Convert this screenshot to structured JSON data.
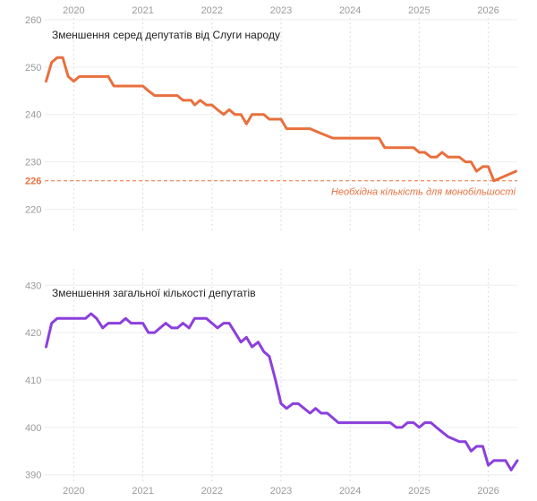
{
  "chart_data": [
    {
      "type": "line",
      "title": "Зменшення серед депутатів від Слуги народу",
      "color": "#e8703e",
      "xlim": [
        2019.58,
        2026.42
      ],
      "ylim": [
        218,
        260
      ],
      "x_ticks": [
        2020,
        2021,
        2022,
        2023,
        2024,
        2025,
        2026
      ],
      "x_tick_labels": [
        "2020",
        "2021",
        "2022",
        "2023",
        "2024",
        "2025",
        "2026"
      ],
      "y_ticks": [
        220,
        230,
        240,
        250,
        260
      ],
      "y_tick_labels": [
        "220",
        "230",
        "240",
        "250",
        "260"
      ],
      "x_axis_position": "top",
      "grid": true,
      "reference_line": {
        "value": 226,
        "label": "Необхідна кількість для монобільшості",
        "tick_label": "226",
        "color": "#e8703e"
      },
      "series": [
        {
          "x": [
            2019.6,
            2019.68,
            2019.76,
            2019.84,
            2019.92,
            2020.0,
            2020.08,
            2020.25,
            2020.5,
            2020.58,
            2020.66,
            2020.75,
            2021.0,
            2021.08,
            2021.17,
            2021.25,
            2021.5,
            2021.58,
            2021.7,
            2021.75,
            2021.83,
            2021.92,
            2022.0,
            2022.08,
            2022.17,
            2022.25,
            2022.33,
            2022.42,
            2022.5,
            2022.58,
            2022.67,
            2022.75,
            2022.83,
            2023.0,
            2023.08,
            2023.17,
            2023.42,
            2023.58,
            2023.75,
            2024.0,
            2024.25,
            2024.42,
            2024.5,
            2024.75,
            2024.92,
            2025.0,
            2025.08,
            2025.17,
            2025.25,
            2025.33,
            2025.42,
            2025.58,
            2025.67,
            2025.75,
            2025.83,
            2025.92,
            2026.0,
            2026.08,
            2026.4
          ],
          "values": [
            247,
            251,
            252,
            252,
            248,
            247,
            248,
            248,
            248,
            246,
            246,
            246,
            246,
            245,
            244,
            244,
            244,
            243,
            243,
            242,
            243,
            242,
            242,
            241,
            240,
            241,
            240,
            240,
            238,
            240,
            240,
            240,
            239,
            239,
            237,
            237,
            237,
            236,
            235,
            235,
            235,
            235,
            233,
            233,
            233,
            232,
            232,
            231,
            231,
            232,
            231,
            231,
            230,
            230,
            228,
            229,
            229,
            226,
            228
          ]
        }
      ]
    },
    {
      "type": "line",
      "title": "Зменшення загальної кількості депутатів",
      "color": "#8b3fdc",
      "xlim": [
        2019.58,
        2026.42
      ],
      "ylim": [
        389,
        431
      ],
      "x_ticks": [
        2020,
        2021,
        2022,
        2023,
        2024,
        2025,
        2026
      ],
      "x_tick_labels": [
        "2020",
        "2021",
        "2022",
        "2023",
        "2024",
        "2025",
        "2026"
      ],
      "y_ticks": [
        390,
        400,
        410,
        420,
        430
      ],
      "y_tick_labels": [
        "390",
        "400",
        "410",
        "420",
        "430"
      ],
      "x_axis_position": "bottom",
      "grid": true,
      "series": [
        {
          "x": [
            2019.6,
            2019.68,
            2019.76,
            2019.84,
            2020.0,
            2020.17,
            2020.25,
            2020.33,
            2020.42,
            2020.5,
            2020.58,
            2020.67,
            2020.75,
            2020.83,
            2021.0,
            2021.08,
            2021.17,
            2021.25,
            2021.33,
            2021.42,
            2021.5,
            2021.58,
            2021.67,
            2021.75,
            2021.92,
            2022.08,
            2022.17,
            2022.25,
            2022.42,
            2022.5,
            2022.58,
            2022.67,
            2022.75,
            2022.83,
            2022.92,
            2023.0,
            2023.08,
            2023.17,
            2023.25,
            2023.42,
            2023.5,
            2023.58,
            2023.67,
            2023.83,
            2023.92,
            2024.0,
            2024.25,
            2024.58,
            2024.67,
            2024.75,
            2024.83,
            2024.92,
            2025.0,
            2025.08,
            2025.17,
            2025.25,
            2025.42,
            2025.58,
            2025.67,
            2025.75,
            2025.83,
            2025.92,
            2026.0,
            2026.08,
            2026.25,
            2026.33,
            2026.42
          ],
          "values": [
            417,
            422,
            423,
            423,
            423,
            423,
            424,
            423,
            421,
            422,
            422,
            422,
            423,
            422,
            422,
            420,
            420,
            421,
            422,
            421,
            421,
            422,
            421,
            423,
            423,
            421,
            422,
            422,
            418,
            419,
            417,
            418,
            416,
            415,
            410,
            405,
            404,
            405,
            405,
            403,
            404,
            403,
            403,
            401,
            401,
            401,
            401,
            401,
            400,
            400,
            401,
            401,
            400,
            401,
            401,
            400,
            398,
            397,
            397,
            395,
            396,
            396,
            392,
            393,
            393,
            391,
            393
          ]
        }
      ]
    }
  ]
}
